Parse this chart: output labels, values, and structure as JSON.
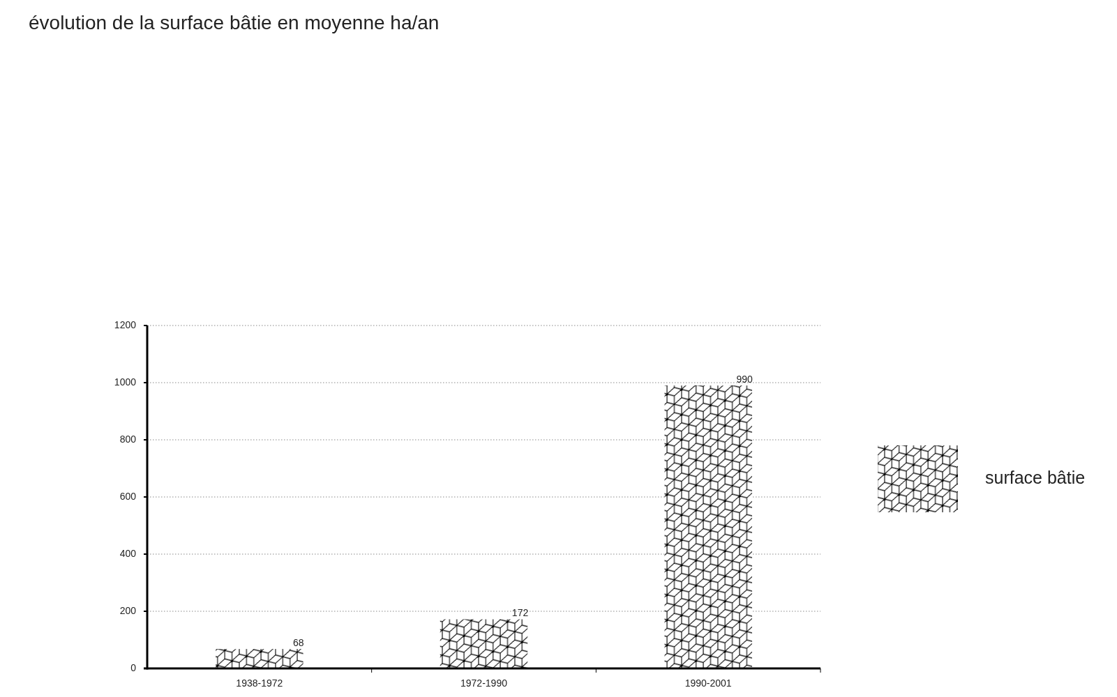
{
  "chart_data": {
    "type": "bar",
    "title": "évolution de la surface bâtie en moyenne ha/an",
    "categories": [
      "1938-1972",
      "1972-1990",
      "1990-2001"
    ],
    "series": [
      {
        "name": "surface bâtie",
        "color": "#000000",
        "values": [
          68,
          172,
          990
        ]
      }
    ],
    "ylim": [
      0,
      1200
    ],
    "yticks": [
      0,
      200,
      400,
      600,
      800,
      1000,
      1200
    ],
    "grid": "y",
    "legend": "right",
    "data_labels": true
  }
}
